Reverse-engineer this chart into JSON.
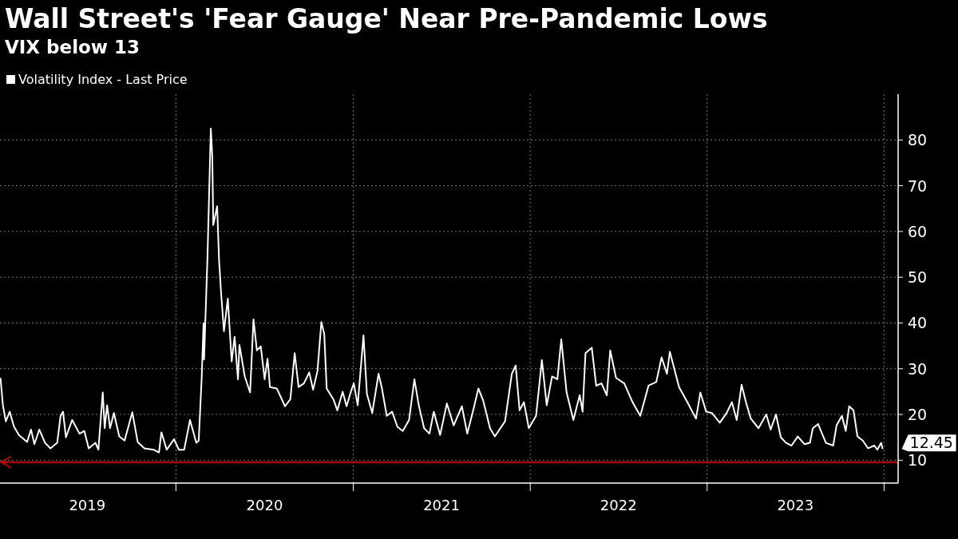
{
  "chart_data": {
    "type": "line",
    "title": "Wall Street's 'Fear Gauge' Near Pre-Pandemic Lows",
    "subtitle": "VIX below 13",
    "legend": "top left",
    "grid": true,
    "x": [
      "2019-01-04",
      "2019-01-09",
      "2019-01-15",
      "2019-01-23",
      "2019-02-01",
      "2019-02-11",
      "2019-02-28",
      "2019-03-08",
      "2019-03-15",
      "2019-03-25",
      "2019-04-06",
      "2019-04-17",
      "2019-05-01",
      "2019-05-08",
      "2019-05-13",
      "2019-05-19",
      "2019-06-01",
      "2019-06-16",
      "2019-06-26",
      "2019-07-05",
      "2019-07-19",
      "2019-07-25",
      "2019-08-03",
      "2019-08-07",
      "2019-08-12",
      "2019-08-18",
      "2019-08-26",
      "2019-09-06",
      "2019-09-17",
      "2019-10-03",
      "2019-10-14",
      "2019-10-28",
      "2019-11-16",
      "2019-11-27",
      "2019-12-02",
      "2019-12-13",
      "2019-12-28",
      "2020-01-07",
      "2020-01-18",
      "2020-01-30",
      "2020-02-12",
      "2020-02-17",
      "2020-02-23",
      "2020-02-27",
      "2020-02-28",
      "2020-03-06",
      "2020-03-13",
      "2020-03-16",
      "2020-03-18",
      "2020-03-26",
      "2020-03-30",
      "2020-04-03",
      "2020-04-09",
      "2020-04-17",
      "2020-04-25",
      "2020-05-01",
      "2020-05-08",
      "2020-05-11",
      "2020-05-22",
      "2020-06-02",
      "2020-06-09",
      "2020-06-16",
      "2020-06-24",
      "2020-07-02",
      "2020-07-08",
      "2020-07-13",
      "2020-07-27",
      "2020-08-13",
      "2020-08-24",
      "2020-09-02",
      "2020-09-10",
      "2020-09-21",
      "2020-10-02",
      "2020-10-10",
      "2020-10-19",
      "2020-10-27",
      "2020-11-02",
      "2020-11-07",
      "2020-11-21",
      "2020-11-29",
      "2020-12-10",
      "2020-12-18",
      "2020-12-27",
      "2021-01-02",
      "2021-01-10",
      "2021-01-22",
      "2021-01-29",
      "2021-02-09",
      "2021-02-22",
      "2021-03-01",
      "2021-03-11",
      "2021-03-22",
      "2021-04-02",
      "2021-04-13",
      "2021-04-26",
      "2021-05-07",
      "2021-05-16",
      "2021-05-27",
      "2021-06-07",
      "2021-06-16",
      "2021-06-29",
      "2021-07-13",
      "2021-07-27",
      "2021-08-13",
      "2021-08-24",
      "2021-09-06",
      "2021-09-16",
      "2021-09-26",
      "2021-10-10",
      "2021-10-20",
      "2021-11-10",
      "2021-11-24",
      "2021-12-02",
      "2021-12-10",
      "2021-12-19",
      "2021-12-29",
      "2022-01-13",
      "2022-01-25",
      "2022-02-04",
      "2022-02-15",
      "2022-02-26",
      "2022-03-06",
      "2022-03-17",
      "2022-03-31",
      "2022-04-13",
      "2022-04-19",
      "2022-04-25",
      "2022-05-08",
      "2022-05-17",
      "2022-05-28",
      "2022-06-08",
      "2022-06-15",
      "2022-06-27",
      "2022-07-14",
      "2022-07-31",
      "2022-08-16",
      "2022-09-02",
      "2022-09-18",
      "2022-09-29",
      "2022-10-10",
      "2022-10-16",
      "2022-11-04",
      "2022-11-21",
      "2022-12-09",
      "2022-12-18",
      "2022-12-30",
      "2023-01-11",
      "2023-01-27",
      "2023-02-10",
      "2023-02-21",
      "2023-03-03",
      "2023-03-13",
      "2023-03-22",
      "2023-04-01",
      "2023-04-17",
      "2023-05-03",
      "2023-05-12",
      "2023-05-23",
      "2023-06-02",
      "2023-06-13",
      "2023-06-24",
      "2023-07-07",
      "2023-07-21",
      "2023-08-01",
      "2023-08-07",
      "2023-08-18",
      "2023-09-03",
      "2023-09-18",
      "2023-09-25",
      "2023-10-06",
      "2023-10-14",
      "2023-10-21",
      "2023-10-30",
      "2023-11-07",
      "2023-11-18",
      "2023-11-29",
      "2023-12-12",
      "2023-12-18",
      "2023-12-26",
      "2023-12-29"
    ],
    "series": [
      {
        "name": "Volatility Index - Last Price",
        "color": "#ffffff",
        "values": [
          28,
          22,
          18.5,
          20.6,
          17.3,
          15.5,
          14,
          16.7,
          13.5,
          16.7,
          13.8,
          12.6,
          13.8,
          19.7,
          20.6,
          15,
          18.8,
          15.8,
          16.4,
          12.6,
          13.8,
          12.3,
          24.8,
          17,
          22,
          17,
          20.3,
          15.2,
          14.3,
          20.5,
          14,
          12.6,
          12.3,
          11.7,
          16.1,
          12.3,
          14.6,
          12.3,
          12.3,
          18.8,
          13.8,
          14.3,
          27.7,
          40,
          32,
          54.2,
          82.5,
          76.3,
          61.4,
          65.5,
          53.6,
          46.8,
          38.2,
          45.3,
          31.6,
          37,
          27.7,
          35.2,
          28.3,
          24.8,
          40.8,
          34,
          34.9,
          27.7,
          32.2,
          26,
          25.7,
          21.8,
          23.3,
          33.4,
          26,
          26.8,
          29.2,
          25.4,
          29.5,
          40.2,
          37.6,
          25.7,
          23.3,
          20.9,
          25,
          21.8,
          25,
          26.8,
          22,
          37.3,
          24.5,
          20.3,
          28.9,
          25.7,
          19.7,
          20.6,
          17.3,
          16.4,
          18.8,
          27.7,
          22,
          17,
          15.8,
          20.6,
          15.5,
          22.4,
          17.6,
          21.8,
          15.8,
          21.2,
          25.7,
          23,
          17,
          15.2,
          18.5,
          28.9,
          30.7,
          20.9,
          22.7,
          17,
          19.7,
          31.9,
          22,
          28.3,
          27.7,
          36.4,
          24.8,
          18.8,
          24.2,
          20.6,
          33.4,
          34.6,
          26.3,
          26.8,
          24.2,
          34,
          28,
          26.8,
          22.7,
          19.7,
          26.3,
          27.1,
          32.5,
          28.9,
          33.7,
          26,
          22.7,
          19.1,
          24.8,
          20.6,
          20.3,
          18.2,
          20.3,
          22.7,
          18.8,
          26.5,
          22.7,
          19.1,
          17,
          20,
          16.7,
          20,
          15,
          13.8,
          13.2,
          15.2,
          13.5,
          13.8,
          17,
          17.9,
          13.8,
          13.2,
          17.6,
          19.7,
          16.4,
          21.8,
          20.9,
          15.2,
          14.3,
          12.6,
          13.2,
          12.3,
          13.8,
          12.45
        ]
      }
    ],
    "xlim": [
      "2019-01-03",
      "2024-01-30"
    ],
    "xticks": [
      {
        "value": "2019-07-02",
        "label": "2019"
      },
      {
        "value": "2020-01-01",
        "label": null
      },
      {
        "value": "2020-07-02",
        "label": "2020"
      },
      {
        "value": "2021-01-01",
        "label": null
      },
      {
        "value": "2021-07-02",
        "label": "2021"
      },
      {
        "value": "2022-01-01",
        "label": null
      },
      {
        "value": "2022-07-02",
        "label": "2022"
      },
      {
        "value": "2023-01-01",
        "label": null
      },
      {
        "value": "2023-07-02",
        "label": "2023"
      },
      {
        "value": "2024-01-01",
        "label": null
      }
    ],
    "ylim": [
      5,
      90
    ],
    "yticks": [
      10,
      20,
      30,
      40,
      50,
      60,
      70,
      80
    ],
    "annotations": [
      {
        "text": "12.45",
        "x": "2023-12-29",
        "y": 12.45
      }
    ],
    "ref_lines": [
      {
        "axis": "y",
        "value": 9.6,
        "color": "#e00000"
      }
    ]
  }
}
